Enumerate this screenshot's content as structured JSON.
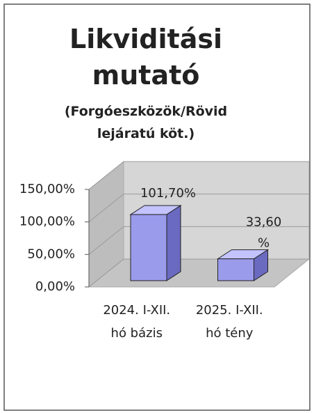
{
  "chart_data": {
    "type": "bar3d",
    "title": "Likviditási mutató",
    "subtitle": "(Forgóeszközök/Rövid lejáratú köt.)",
    "categories": [
      "2024. I-XII. hó bázis",
      "2025. I-XII. hó tény"
    ],
    "values": [
      101.7,
      33.6
    ],
    "value_labels": [
      "101,70%",
      "33,60 %"
    ],
    "color": "#9b9bec",
    "ylim": [
      0,
      150
    ],
    "yticks": [
      {
        "value": 0,
        "label": "0,00%"
      },
      {
        "value": 50,
        "label": "50,00%"
      },
      {
        "value": 100,
        "label": "100,00%"
      },
      {
        "value": 150,
        "label": "150,00%"
      }
    ],
    "grid": true
  }
}
